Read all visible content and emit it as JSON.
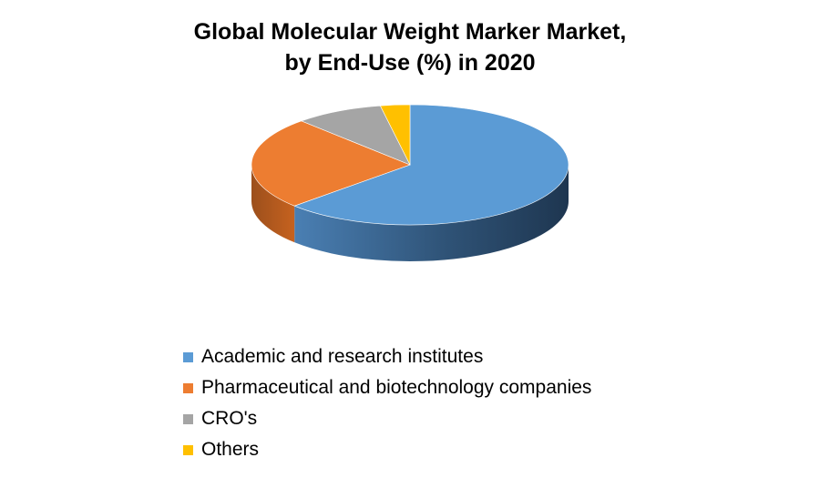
{
  "chart_data": {
    "type": "pie",
    "title_lines": [
      "Global Molecular Weight Marker Market,",
      "by End-Use (%) in 2020"
    ],
    "categories": [
      "Academic and research institutes",
      "Pharmaceutical and biotechnology companies",
      "CRO's",
      "Others"
    ],
    "values": [
      63,
      25,
      9,
      3
    ],
    "colors": [
      "#5b9bd5",
      "#ed7d31",
      "#a5a5a5",
      "#ffc000"
    ],
    "legend_position": "bottom",
    "style": "3d"
  }
}
